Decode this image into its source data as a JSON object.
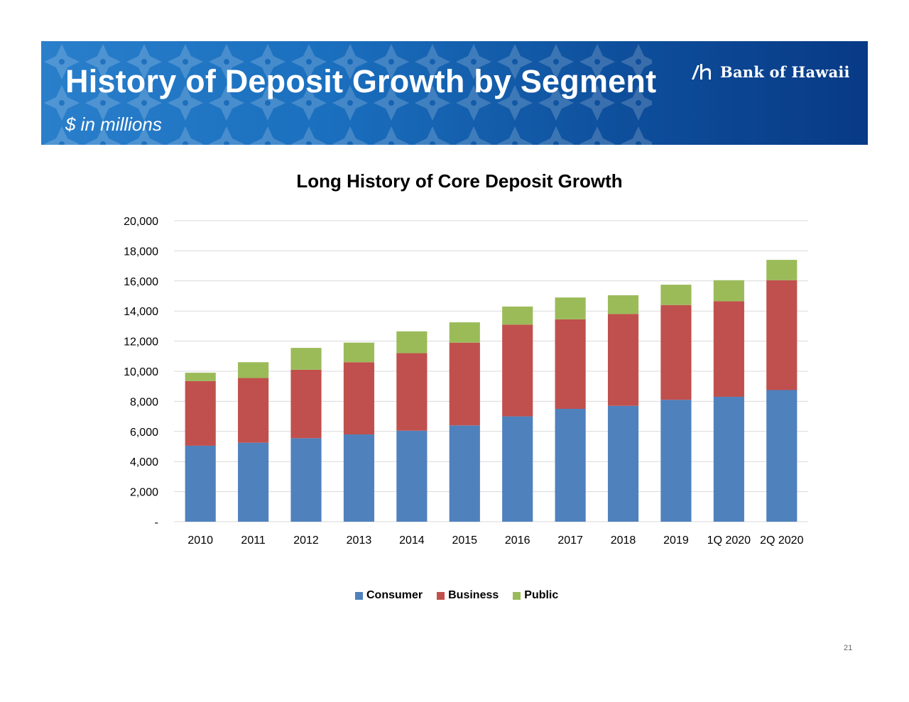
{
  "header": {
    "title": "History of Deposit Growth by Segment",
    "subtitle": "$ in millions",
    "logo_text": "Bank of Hawaii"
  },
  "colors": {
    "banner_dark": "#083a86",
    "banner_light": "#2a7fcb",
    "consumer": "#4f81bd",
    "business": "#c0504d",
    "public": "#9bbb59",
    "gridline": "#d9d9d9"
  },
  "chart_data": {
    "type": "bar",
    "stacked": true,
    "title": "Long History of Core Deposit Growth",
    "xlabel": "",
    "ylabel": "",
    "ylim": [
      0,
      20000
    ],
    "ytick_values": [
      0,
      2000,
      4000,
      6000,
      8000,
      10000,
      12000,
      14000,
      16000,
      18000,
      20000
    ],
    "ytick_labels": [
      "-",
      "2,000",
      "4,000",
      "6,000",
      "8,000",
      "10,000",
      "12,000",
      "14,000",
      "16,000",
      "18,000",
      "20,000"
    ],
    "grid": true,
    "legend_position": "bottom-center",
    "categories": [
      "2010",
      "2011",
      "2012",
      "2013",
      "2014",
      "2015",
      "2016",
      "2017",
      "2018",
      "2019",
      "1Q 2020",
      "2Q 2020"
    ],
    "series": [
      {
        "name": "Consumer",
        "values": [
          5050,
          5250,
          5550,
          5800,
          6050,
          6400,
          7000,
          7500,
          7700,
          8100,
          8300,
          8750
        ]
      },
      {
        "name": "Business",
        "values": [
          4300,
          4300,
          4550,
          4800,
          5150,
          5500,
          6100,
          5950,
          6100,
          6300,
          6350,
          7300
        ]
      },
      {
        "name": "Public",
        "values": [
          550,
          1050,
          1450,
          1300,
          1450,
          1350,
          1200,
          1450,
          1250,
          1350,
          1400,
          1350
        ]
      }
    ]
  },
  "page_number": "21"
}
